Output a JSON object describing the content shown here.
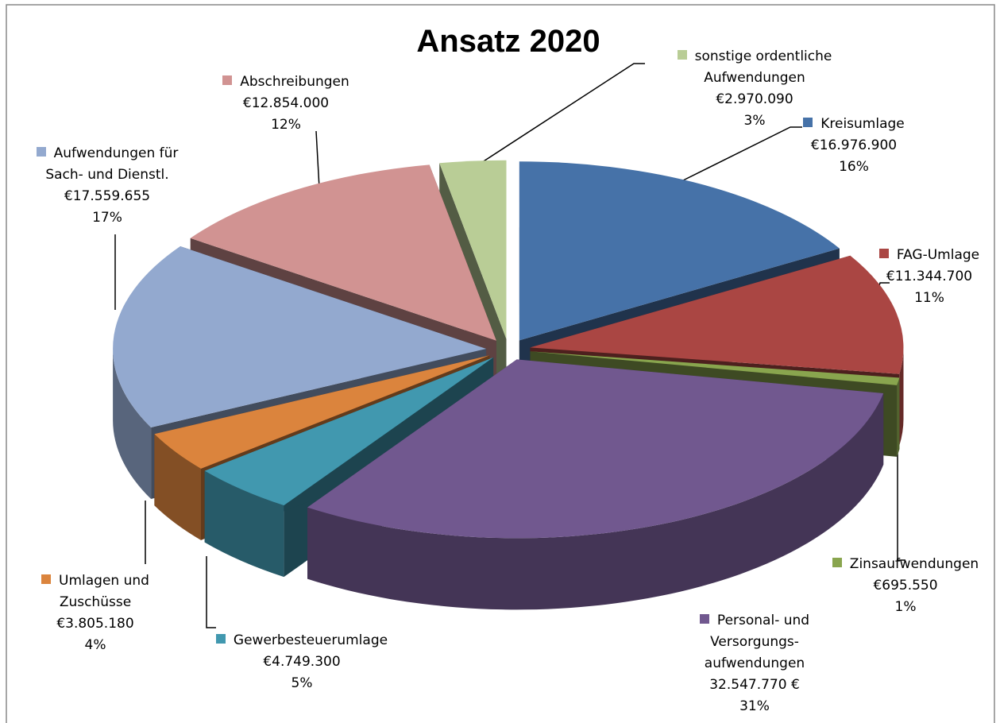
{
  "chart_data": {
    "type": "pie",
    "title": "Ansatz 2020",
    "categories": [
      "Kreisumlage",
      "FAG-Umlage",
      "Zinsaufwendungen",
      "Personal- und Versorgungs-aufwendungen",
      "Gewerbesteuerumlage",
      "Umlagen und Zuschüsse",
      "Aufwendungen für Sach- und Dienstl.",
      "Abschreibungen",
      "sonstige ordentliche Aufwendungen"
    ],
    "values": [
      16976900,
      11344700,
      695550,
      32547770,
      4749300,
      3805180,
      17559655,
      12854000,
      2970090
    ],
    "value_labels": [
      "€16.976.900",
      "€11.344.700",
      "€695.550",
      "32.547.770 €",
      "€4.749.300",
      "€3.805.180",
      "€17.559.655",
      "€12.854.000",
      "€2.970.090"
    ],
    "percent_labels": [
      "16%",
      "11%",
      "1%",
      "31%",
      "5%",
      "4%",
      "17%",
      "12%",
      "3%"
    ],
    "colors": [
      "#4672a8",
      "#aa4643",
      "#89a54e",
      "#71588f",
      "#4198af",
      "#db843d",
      "#93a9cf",
      "#d19392",
      "#b9cd96"
    ]
  }
}
